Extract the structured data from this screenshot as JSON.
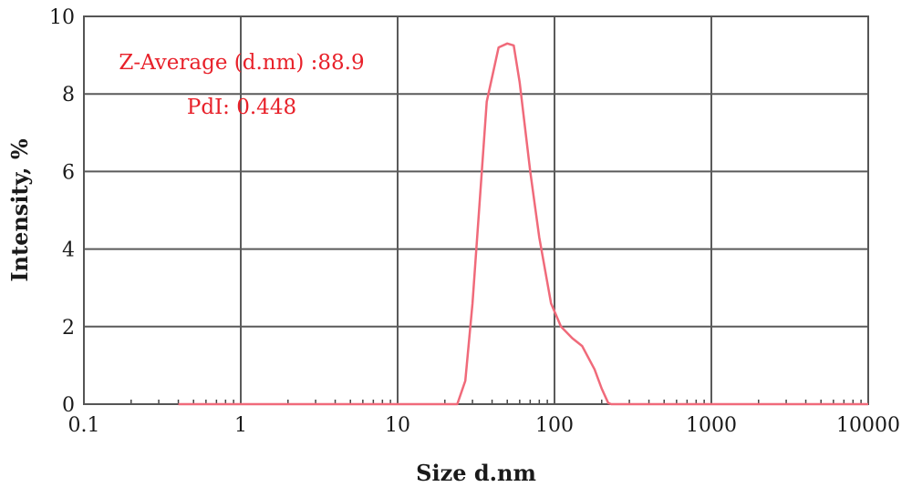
{
  "chart_data": {
    "type": "line",
    "title": "",
    "xlabel": "Size d.nm",
    "ylabel": "Intensity, %",
    "x_scale": "log",
    "xlim": [
      0.1,
      10000
    ],
    "ylim": [
      0,
      10
    ],
    "x_ticks": [
      0.1,
      1,
      10,
      100,
      1000,
      10000
    ],
    "x_tick_labels": [
      "0.1",
      "1",
      "10",
      "100",
      "1000",
      "10000"
    ],
    "y_ticks": [
      0,
      2,
      4,
      6,
      8,
      10
    ],
    "y_tick_labels": [
      "0",
      "2",
      "4",
      "6",
      "8",
      "10"
    ],
    "grid": true,
    "line_color": "#f06a7a",
    "annotations": [
      {
        "text": "Z-Average (d.nm) :88.9",
        "color": "#e8212a"
      },
      {
        "text": "PdI: 0.448",
        "color": "#e8212a"
      }
    ],
    "series": [
      {
        "x": [
          0.4,
          1,
          10,
          24,
          27,
          30,
          37,
          44,
          50,
          55,
          60,
          70,
          80,
          95,
          110,
          130,
          150,
          180,
          200,
          220,
          230,
          500,
          1000,
          5000,
          10000
        ],
        "y": [
          0,
          0,
          0,
          0,
          0.6,
          2.6,
          7.8,
          9.2,
          9.3,
          9.25,
          8.3,
          6.0,
          4.3,
          2.6,
          2.0,
          1.7,
          1.5,
          0.9,
          0.4,
          0.03,
          0,
          0,
          0,
          0,
          0
        ]
      }
    ]
  }
}
